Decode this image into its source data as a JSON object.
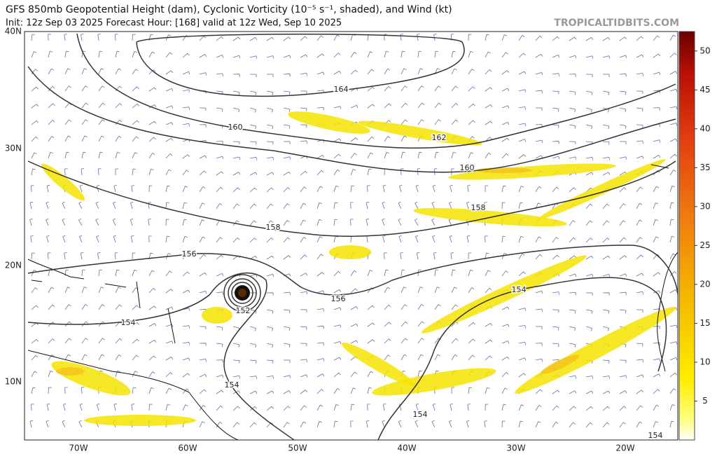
{
  "header": {
    "title": "GFS 850mb Geopotential Height (dam), Cyclonic Vorticity (10⁻⁵ s⁻¹, shaded), and Wind (kt)",
    "subtitle": "Init: 12z Sep 03 2025   Forecast Hour: [168]   valid at 12z Wed, Sep 10 2025",
    "source": "TROPICALTIDBITS.COM"
  },
  "map": {
    "lat_labels": [
      "40N",
      "30N",
      "20N",
      "10N"
    ],
    "lon_labels": [
      "70W",
      "60W",
      "50W",
      "40W",
      "30W",
      "20W"
    ],
    "contour_labels": [
      "164",
      "162",
      "160",
      "160",
      "158",
      "158",
      "156",
      "156",
      "154",
      "154",
      "152",
      "154",
      "154",
      "154"
    ]
  },
  "colorbar": {
    "ticks": [
      5,
      10,
      15,
      20,
      25,
      30,
      35,
      40,
      45,
      50
    ]
  }
}
